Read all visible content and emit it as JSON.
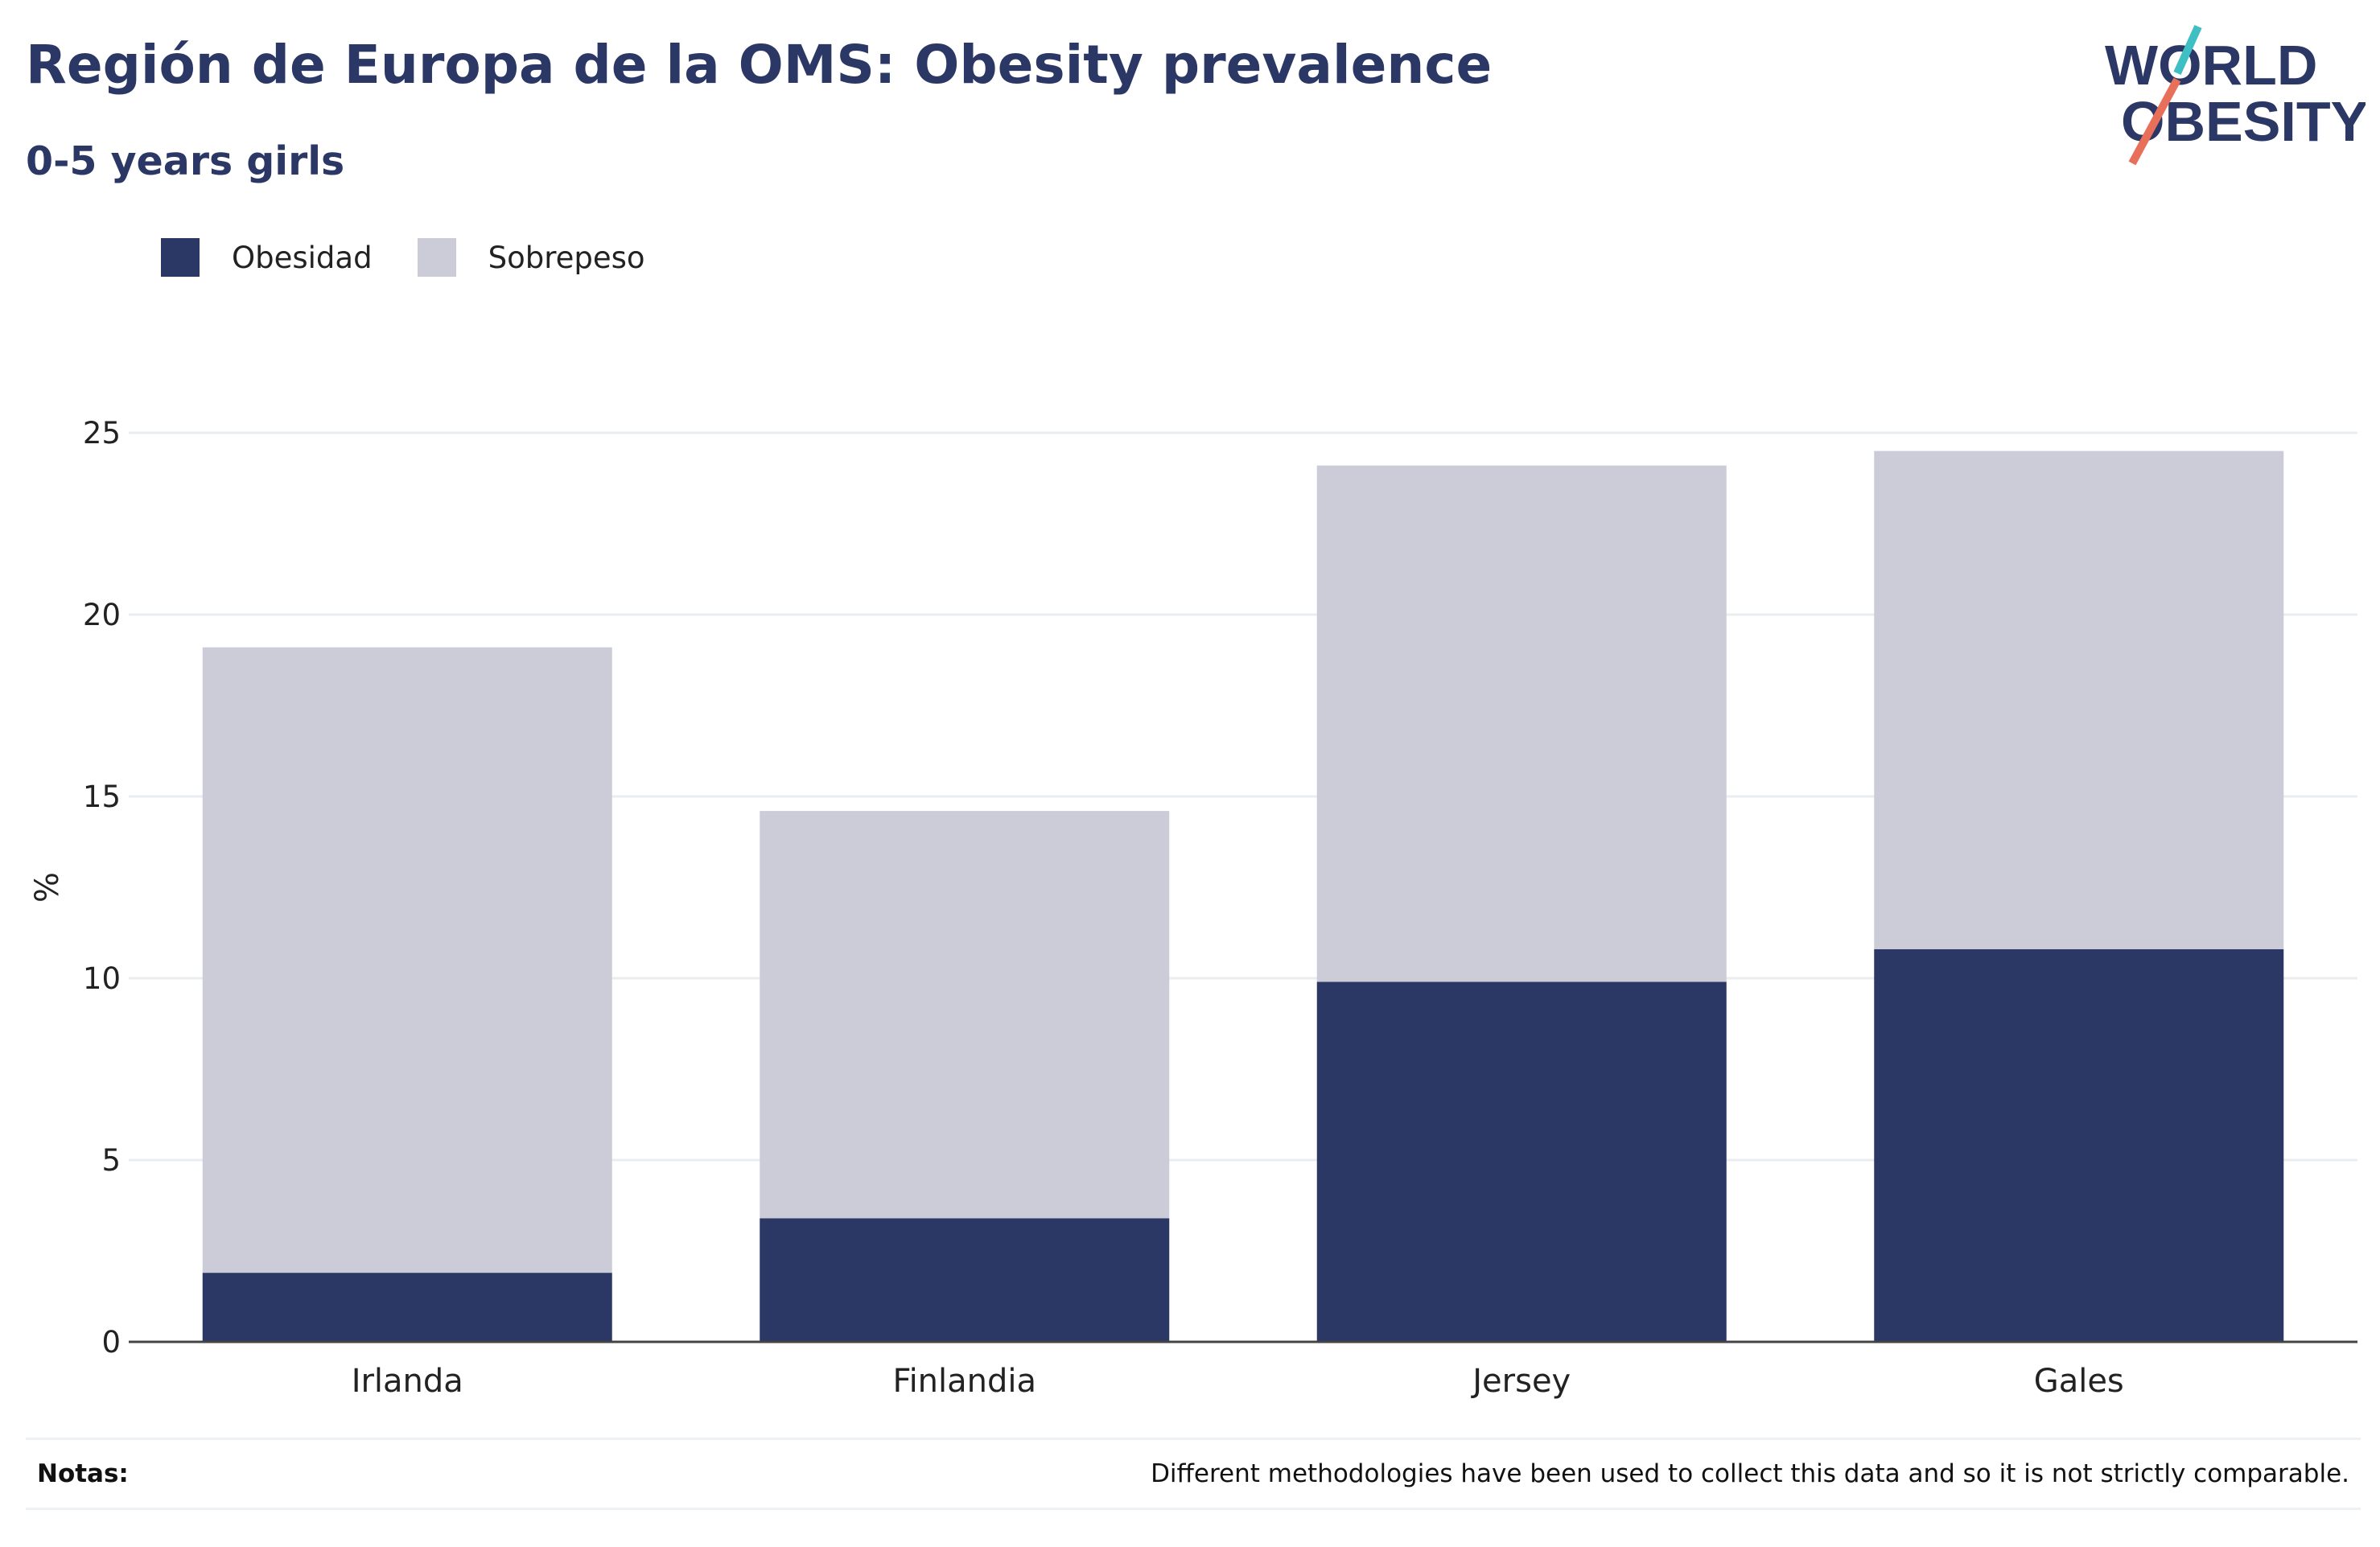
{
  "header": {
    "title": "Región de Europa de la OMS: Obesity prevalence",
    "subtitle": "0-5 years girls"
  },
  "logo": {
    "line1": "WORLD",
    "line2": "OBESITY",
    "colors": {
      "text": "#2b3765",
      "slash_top": "#3fbfc4",
      "slash_bottom": "#e8705a"
    }
  },
  "legend": {
    "items": [
      {
        "label": "Obesidad",
        "color": "#2b3765"
      },
      {
        "label": "Sobrepeso",
        "color": "#cbccd8"
      }
    ]
  },
  "notes": {
    "label": "Notas:",
    "text": "Different methodologies have been used to collect this data and so it is not strictly comparable."
  },
  "chart_data": {
    "type": "bar",
    "stacked": true,
    "categories": [
      "Irlanda",
      "Finlandia",
      "Jersey",
      "Gales"
    ],
    "series": [
      {
        "name": "Obesidad",
        "color": "#2b3765",
        "values": [
          1.9,
          3.4,
          9.9,
          10.8
        ]
      },
      {
        "name": "Sobrepeso",
        "color": "#cbccd8",
        "values": [
          17.2,
          11.2,
          14.2,
          13.7
        ]
      }
    ],
    "ylabel": "%",
    "ylim": [
      0,
      25
    ],
    "yticks": [
      0,
      5,
      10,
      15,
      20,
      25
    ],
    "grid": true
  }
}
